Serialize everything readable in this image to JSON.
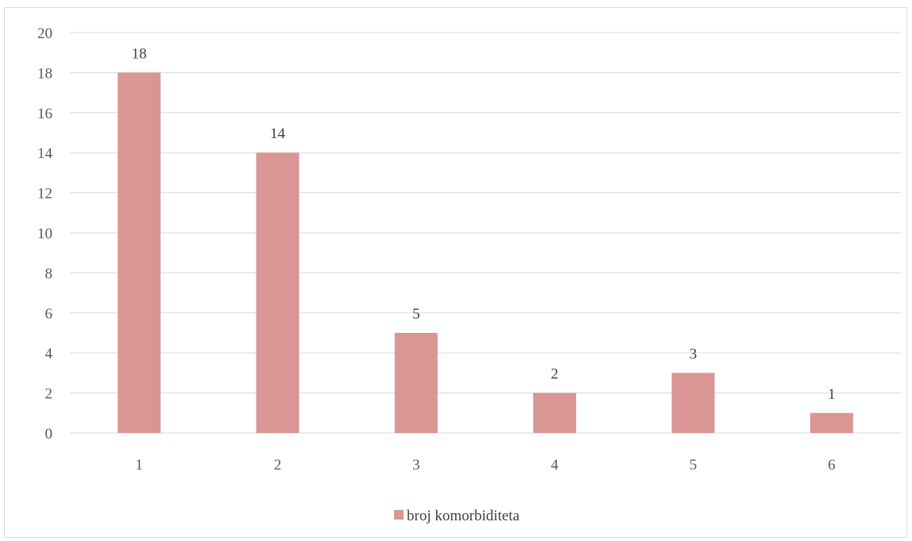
{
  "chart_data": {
    "type": "bar",
    "categories": [
      "1",
      "2",
      "3",
      "4",
      "5",
      "6"
    ],
    "series": [
      {
        "name": "broj komorbiditeta",
        "values": [
          18,
          14,
          5,
          2,
          3,
          1
        ],
        "color": "#d99694"
      }
    ],
    "title": "",
    "xlabel": "",
    "ylabel": "",
    "ylim": [
      0,
      20
    ],
    "yticks": [
      0,
      2,
      4,
      6,
      8,
      10,
      12,
      14,
      16,
      18,
      20
    ],
    "grid": true,
    "data_labels": true,
    "legend_position": "bottom",
    "colors": {
      "grid": "#d9d9d9",
      "axis_text": "#595959",
      "bar": "#d99694"
    }
  }
}
